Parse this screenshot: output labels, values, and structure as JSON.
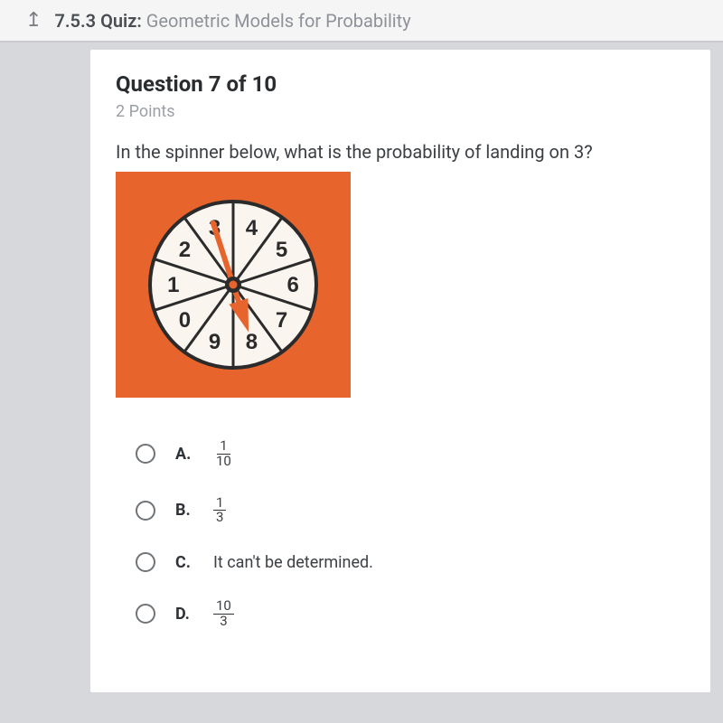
{
  "header": {
    "section": "7.5.3",
    "label": "Quiz:",
    "topic": "Geometric Models for Probability"
  },
  "question": {
    "current": 7,
    "total": 10,
    "points_label": "2 Points",
    "prompt": "In the spinner below, what is the probability of landing on 3?"
  },
  "spinner": {
    "background_color": "#e7642c",
    "wheel_fill": "#faf5ef",
    "stroke_color": "#2b2b2b",
    "stroke_width": 4,
    "radius": 92,
    "sectors": 10,
    "labels": [
      "1",
      "2",
      "3",
      "4",
      "5",
      "6",
      "7",
      "8",
      "9",
      "0"
    ],
    "pointer_color": "#e7642c",
    "hub_outer": "#2b2b2b",
    "hub_inner": "#e7642c",
    "label_fontsize": 24,
    "label_fontweight": 700
  },
  "options": [
    {
      "letter": "A.",
      "type": "fraction",
      "num": "1",
      "den": "10"
    },
    {
      "letter": "B.",
      "type": "fraction",
      "num": "1",
      "den": "3"
    },
    {
      "letter": "C.",
      "type": "text",
      "text": "It can't be determined."
    },
    {
      "letter": "D.",
      "type": "fraction",
      "num": "10",
      "den": "3"
    }
  ]
}
